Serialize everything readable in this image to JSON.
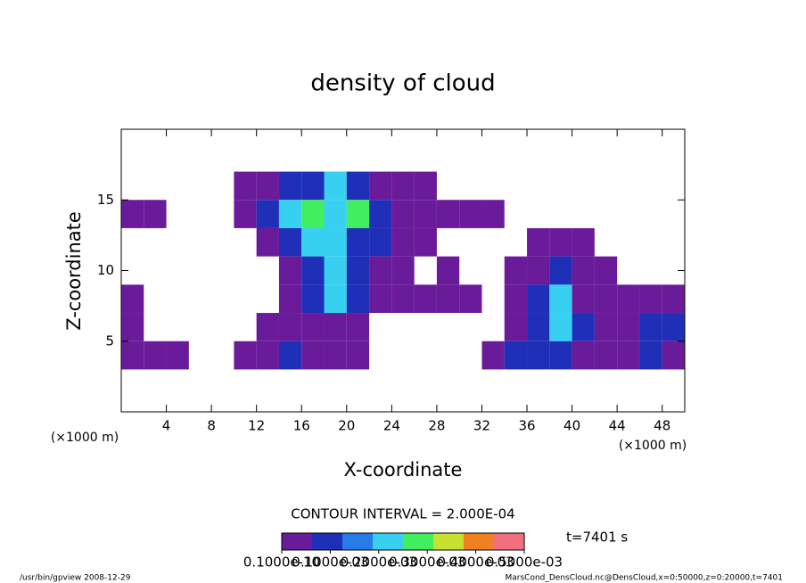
{
  "chart_data": {
    "type": "heatmap",
    "title": "density of cloud",
    "x_label": "X-coordinate",
    "y_label": "Z-coordinate",
    "x_unit": "(×1000 m)",
    "y_unit": "(×1000 m)",
    "xlim": [
      0,
      50
    ],
    "ylim": [
      0,
      20
    ],
    "xticks": [
      4,
      8,
      12,
      16,
      20,
      24,
      28,
      32,
      36,
      40,
      44,
      48
    ],
    "yticks": [
      5,
      10,
      15
    ],
    "x": [
      1,
      3,
      5,
      7,
      9,
      11,
      13,
      15,
      17,
      19,
      21,
      23,
      25,
      27,
      29,
      31,
      33,
      35,
      37,
      39,
      41,
      43,
      45,
      47,
      49
    ],
    "cell_width": 2,
    "cell_height": 2,
    "z": [
      16,
      14,
      12,
      10,
      8,
      6,
      4
    ],
    "values": [
      [
        null,
        null,
        null,
        null,
        null,
        2e-05,
        2e-05,
        0.0001,
        0.0001,
        0.0002,
        0.0001,
        2e-05,
        2e-05,
        2e-05,
        null,
        null,
        null,
        null,
        null,
        null,
        null,
        null,
        null,
        null,
        null
      ],
      [
        2e-05,
        2e-05,
        null,
        null,
        null,
        2e-05,
        0.0001,
        0.0002,
        0.0003,
        0.0002,
        0.0003,
        0.0001,
        2e-05,
        2e-05,
        2e-05,
        2e-05,
        2e-05,
        null,
        null,
        null,
        null,
        null,
        null,
        null,
        null
      ],
      [
        null,
        null,
        null,
        null,
        null,
        null,
        2e-05,
        0.0001,
        0.0002,
        0.0002,
        0.0001,
        0.0001,
        2e-05,
        2e-05,
        null,
        null,
        null,
        null,
        2e-05,
        2e-05,
        2e-05,
        null,
        null,
        null,
        null
      ],
      [
        null,
        null,
        null,
        null,
        null,
        null,
        null,
        2e-05,
        0.0001,
        0.0002,
        0.0001,
        2e-05,
        2e-05,
        null,
        2e-05,
        null,
        null,
        2e-05,
        2e-05,
        0.0001,
        2e-05,
        2e-05,
        null,
        null,
        null
      ],
      [
        2e-05,
        null,
        null,
        null,
        null,
        null,
        null,
        2e-05,
        0.0001,
        0.0002,
        0.0001,
        2e-05,
        2e-05,
        2e-05,
        2e-05,
        2e-05,
        null,
        2e-05,
        0.0001,
        0.0002,
        2e-05,
        2e-05,
        2e-05,
        2e-05,
        2e-05
      ],
      [
        2e-05,
        null,
        null,
        null,
        null,
        null,
        2e-05,
        2e-05,
        2e-05,
        2e-05,
        2e-05,
        null,
        null,
        null,
        null,
        null,
        null,
        2e-05,
        0.0001,
        0.0002,
        0.0001,
        2e-05,
        2e-05,
        0.0001,
        0.0001
      ],
      [
        2e-05,
        2e-05,
        2e-05,
        null,
        null,
        2e-05,
        2e-05,
        0.0001,
        2e-05,
        2e-05,
        2e-05,
        null,
        null,
        null,
        null,
        null,
        2e-05,
        0.0001,
        0.0001,
        0.0001,
        2e-05,
        2e-05,
        2e-05,
        0.0001,
        2e-05
      ]
    ],
    "colormap": [
      "#6a1b9a",
      "#1f2fb8",
      "#2a7ae8",
      "#38d0f0",
      "#40ee60",
      "#c8e030",
      "#f08020",
      "#f07080"
    ],
    "clim": [
      0,
      0.0005
    ],
    "colorbar_ticks": [
      {
        "value": 0,
        "label": "0.1000e-10"
      },
      {
        "value": 0.0001,
        "label": "0.1000e-03"
      },
      {
        "value": 0.0002,
        "label": "0.2000e-03"
      },
      {
        "value": 0.0003,
        "label": "0.3000e-03"
      },
      {
        "value": 0.0004,
        "label": "0.4000e-03"
      },
      {
        "value": 0.0005,
        "label": "0.5000e-03"
      }
    ],
    "contour_interval_text": "CONTOUR INTERVAL = 2.000E-04",
    "time_text": "t=7401 s",
    "footer_left": "/usr/bin/gpview  2008-12-29",
    "footer_right": "MarsCond_DensCloud.nc@DensCloud,x=0:50000,z=0:20000,t=7401"
  }
}
